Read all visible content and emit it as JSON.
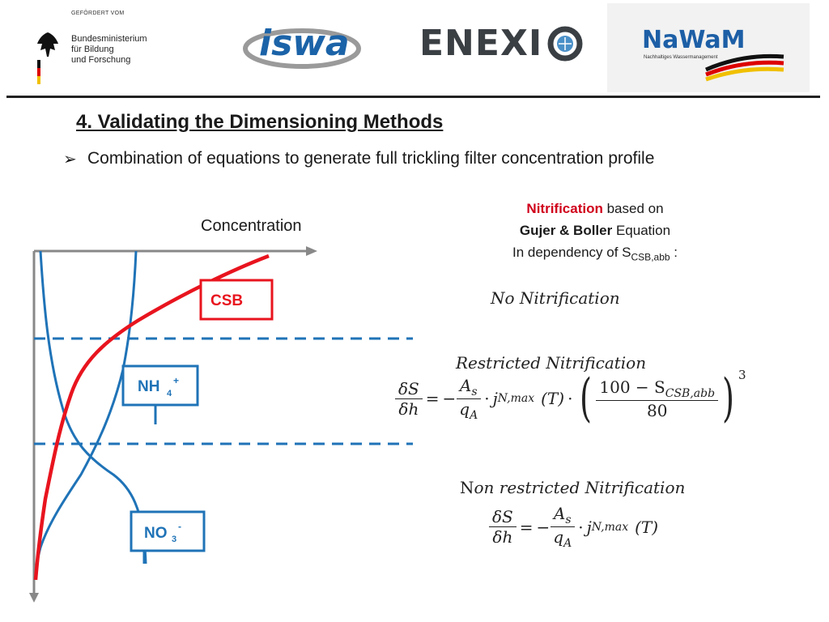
{
  "logos": {
    "funder_caption": "GEFÖRDERT VOM",
    "ministry": [
      "Bundesministerium",
      "für Bildung",
      "und Forschung"
    ],
    "iswa": "iswa",
    "enexio": "ENEXI",
    "nawam": "NaWaM",
    "nawam_subtitle": "Nachhaltiges Wassermanagement"
  },
  "slide": {
    "title": "4. Validating the Dimensioning Methods",
    "bullet_symbol": "➢",
    "bullet": "Combination of equations to generate full trickling filter concentration profile"
  },
  "diagram": {
    "axis_label": "Concentration",
    "labels": {
      "csb": "CSB",
      "nh4": "NH",
      "nh4_sub": "4",
      "nh4_sup": "+",
      "no3": "NO",
      "no3_sub": "3",
      "no3_sup": "-"
    }
  },
  "nitrification": {
    "line1_red": "Nitrification",
    "line1_rest": " based on",
    "line2_bold": "Gujer & Boller",
    "line2_rest": " Equation",
    "line3": "In dependency of S",
    "line3_sub": "CSB,abb",
    "line3_end": " :"
  },
  "equations": {
    "no_nitrification": "No Nitrification",
    "restricted": "Restricted Nitrification",
    "non_restricted_prefix": "N",
    "non_restricted": "on restricted Nitrification",
    "dS": "δS",
    "dh": "δh",
    "equals": "=",
    "minus": "−",
    "A_s": "A",
    "A_s_sub": "s",
    "q_A": "q",
    "q_A_sub": "A",
    "dot": "·",
    "j": "j",
    "j_sub": "N,max",
    "T": "(T)",
    "numerator": "100 − S",
    "numerator_sub": "CSB,abb",
    "denominator": "80",
    "exponent": "3"
  },
  "colors": {
    "red": "#e8141e",
    "blue": "#1f73b7",
    "dark": "#222222"
  }
}
